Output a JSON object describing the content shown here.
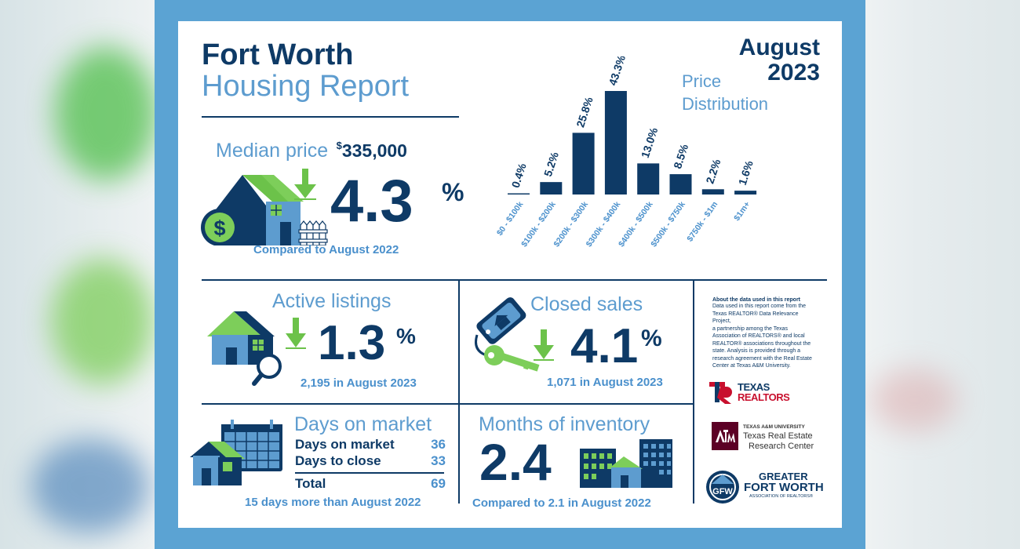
{
  "header": {
    "city": "Fort Worth",
    "report": "Housing Report",
    "month": "August",
    "year": "2023"
  },
  "median": {
    "label": "Median price",
    "currency": "$",
    "value": "335,000",
    "change": "4.3",
    "unit": "%",
    "direction": "down",
    "compare": "Compared to August 2022"
  },
  "price_distribution": {
    "label_line1": "Price",
    "label_line2": "Distribution"
  },
  "chart_data": {
    "type": "bar",
    "title": "Price Distribution",
    "categories": [
      "$0 - $100k",
      "$100k - $200k",
      "$200k - $300k",
      "$300k - $400k",
      "$400k - $500k",
      "$500k - $750k",
      "$750k - $1m",
      "$1m+"
    ],
    "values": [
      0.4,
      5.2,
      25.8,
      43.3,
      13.0,
      8.5,
      2.2,
      1.6
    ],
    "value_labels": [
      "0.4%",
      "5.2%",
      "25.8%",
      "43.3%",
      "13.0%",
      "8.5%",
      "2.2%",
      "1.6%"
    ],
    "ylim": [
      0,
      43.3
    ],
    "grid": false,
    "colors": {
      "bar": "#0e3a66"
    }
  },
  "active": {
    "title": "Active listings",
    "change": "1.3",
    "unit": "%",
    "direction": "down",
    "sub": "2,195 in August 2023"
  },
  "closed": {
    "title": "Closed sales",
    "change": "4.1",
    "unit": "%",
    "direction": "down",
    "sub": "1,071 in August 2023"
  },
  "days": {
    "title": "Days on market",
    "rows": [
      {
        "label": "Days on market",
        "value": "36"
      },
      {
        "label": "Days to close",
        "value": "33"
      }
    ],
    "total_label": "Total",
    "total_value": "69",
    "sub": "15 days more than August 2022"
  },
  "months": {
    "title": "Months of inventory",
    "value": "2.4",
    "sub": "Compared to 2.1 in August 2022"
  },
  "about": {
    "heading": "About the data used in this report",
    "lines": [
      "Data used in this report come from the",
      "Texas REALTOR® Data Relevance Project,",
      "a partnership among the Texas",
      "Association of REALTORS® and local",
      "REALTOR® associations throughout the",
      "state. Analysis is provided through a",
      "research agreement with the Real Estate",
      "Center at Texas A&M University."
    ]
  },
  "logos": {
    "texas_realtors_1": "TEXAS",
    "texas_realtors_2": "REALTORS",
    "tamu_small": "TEXAS A&M UNIVERSITY",
    "tamu_1": "Texas Real Estate",
    "tamu_2": "Research Center",
    "gfw_1": "GREATER",
    "gfw_2": "FORT WORTH",
    "gfw_3": "ASSOCIATION OF REALTORS®"
  },
  "colors": {
    "navy": "#0e3a66",
    "light_blue": "#5d9ccf",
    "green": "#7dce5a",
    "frame": "#5ba3d3"
  }
}
